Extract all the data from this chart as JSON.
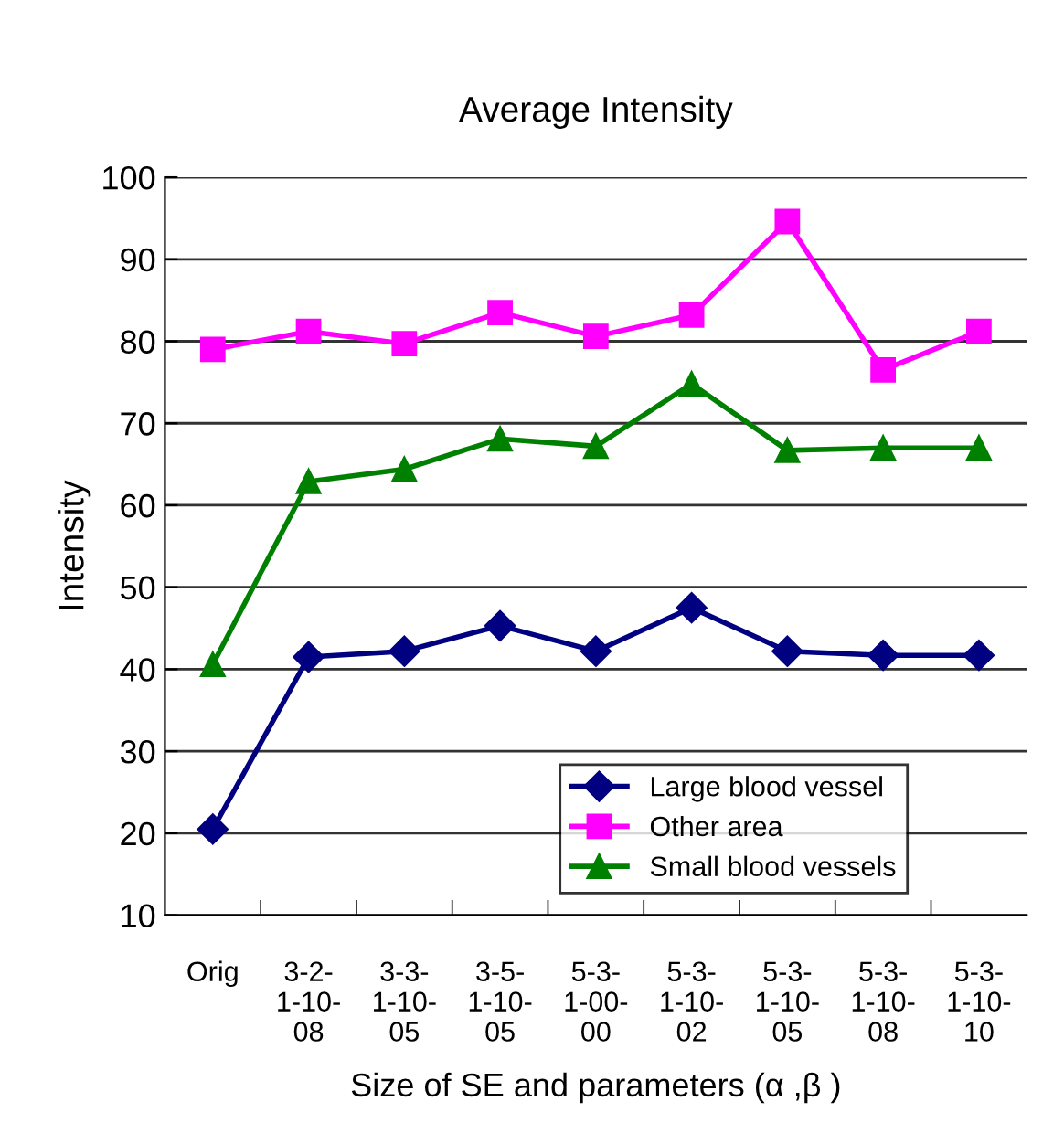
{
  "chart_data": {
    "type": "line",
    "title": "Average Intensity",
    "xlabel": "Size of SE and parameters (α ,β )",
    "ylabel": "Intensity",
    "categories": [
      "Orig",
      "3-2-\n1-10-\n08",
      "3-3-\n1-10-\n05",
      "3-5-\n1-10-\n05",
      "5-3-\n1-00-\n00",
      "5-3-\n1-10-\n02",
      "5-3-\n1-10-\n05",
      "5-3-\n1-10-\n08",
      "5-3-\n1-10-\n10"
    ],
    "series": [
      {
        "name": "Large blood vessel",
        "color": "#000080",
        "marker": "diamond",
        "values": [
          20.5,
          41.5,
          42.2,
          45.3,
          42.2,
          47.5,
          42.2,
          41.7,
          41.7
        ]
      },
      {
        "name": "Other area",
        "color": "#ff00ff",
        "marker": "square",
        "values": [
          79.0,
          81.2,
          79.7,
          83.5,
          80.6,
          83.2,
          94.6,
          76.5,
          81.2
        ]
      },
      {
        "name": "Small blood vessels",
        "color": "#008000",
        "marker": "triangle",
        "values": [
          40.6,
          62.9,
          64.4,
          68.1,
          67.2,
          74.8,
          66.7,
          67.0,
          67.0
        ]
      }
    ],
    "ylim": [
      10,
      100
    ],
    "yticks": [
      10,
      20,
      30,
      40,
      50,
      60,
      70,
      80,
      90,
      100
    ],
    "grid": "y",
    "legend": "bottom"
  }
}
